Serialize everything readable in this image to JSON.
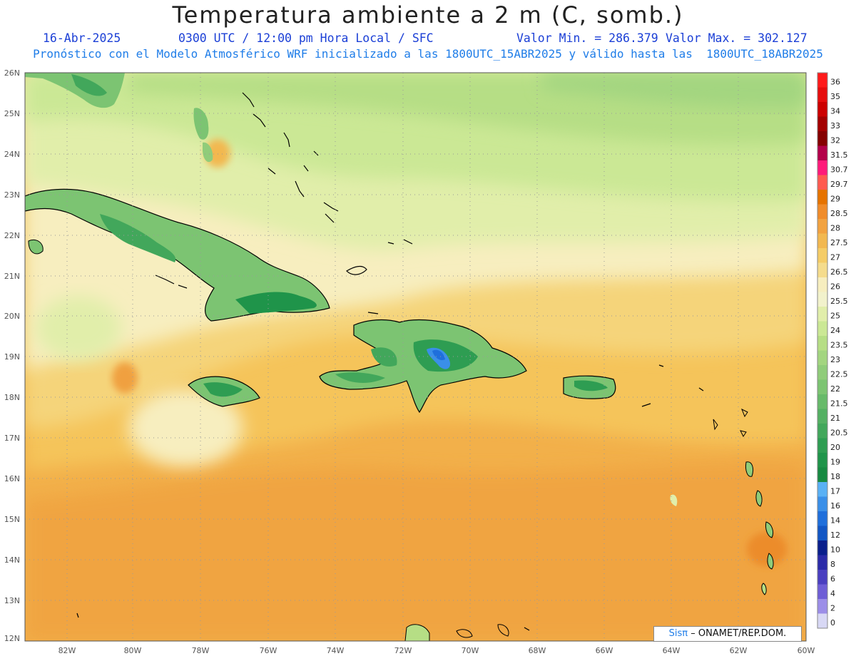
{
  "title": "Temperatura ambiente a 2 m (C, somb.)",
  "subtitle": {
    "date": "16-Abr-2025",
    "time": "0300 UTC / 12:00 pm Hora Local / SFC",
    "min": "Valor Min. = 286.379",
    "max": "Valor Max. = 302.127",
    "model_line": "Pronóstico con el Modelo Atmosférico WRF inicializado a las 1800UTC_15ABR2025 y válido hasta las  1800UTC_18ABR2025"
  },
  "credit": {
    "brand": "Sisπ",
    "text": "– ONAMET/REP.DOM."
  },
  "map": {
    "lon_range": [
      -83,
      -60
    ],
    "lat_range": [
      12,
      26
    ],
    "lat_ticks": [
      "26N",
      "25N",
      "24N",
      "23N",
      "22N",
      "21N",
      "20N",
      "19N",
      "18N",
      "17N",
      "16N",
      "15N",
      "14N",
      "13N",
      "12N"
    ],
    "lon_ticks": [
      "82W",
      "80W",
      "78W",
      "76W",
      "74W",
      "72W",
      "70W",
      "68W",
      "66W",
      "64W",
      "62W",
      "60W"
    ],
    "grid": "dotted"
  },
  "colorbar": {
    "levels": [
      "36",
      "35",
      "34",
      "33",
      "32",
      "31.5",
      "30.7",
      "29.7",
      "29",
      "28.5",
      "28",
      "27.5",
      "27",
      "26.5",
      "26",
      "25.5",
      "25",
      "24",
      "23.5",
      "23",
      "22.5",
      "22",
      "21.5",
      "21",
      "20.5",
      "20",
      "19",
      "18",
      "17",
      "16",
      "14",
      "12",
      "10",
      "8",
      "6",
      "4",
      "2",
      "0"
    ],
    "colors": [
      "#ff1a1a",
      "#e60d0d",
      "#cc0000",
      "#a30000",
      "#850000",
      "#b3004a",
      "#ff1a7a",
      "#ff5a50",
      "#e67300",
      "#f08c2a",
      "#f2a240",
      "#f2b850",
      "#f5cc66",
      "#f5dc8c",
      "#f7eebf",
      "#f2f2cc",
      "#e1eeaa",
      "#cbe895",
      "#b6de85",
      "#a3d580",
      "#90cc7a",
      "#7cc472",
      "#67ba6a",
      "#54b063",
      "#42a75b",
      "#2e9d52",
      "#1f944a",
      "#178a42",
      "#5ab1f5",
      "#3a8fe8",
      "#1f6fdb",
      "#1256c4",
      "#0a1f8c",
      "#2b2ba8",
      "#4a3fc0",
      "#6e5ed6",
      "#9c8ee8",
      "#d8d8f5"
    ]
  },
  "legend_colors": {
    "ocean_warm": "#f2b04a",
    "ocean_mid": "#f5cc66",
    "ocean_cool": "#f7eebf",
    "north_green": "#b6de85",
    "land": "#7cc472",
    "land_dark": "#2e9d52",
    "mountain_blue": "#3a8fe8"
  }
}
